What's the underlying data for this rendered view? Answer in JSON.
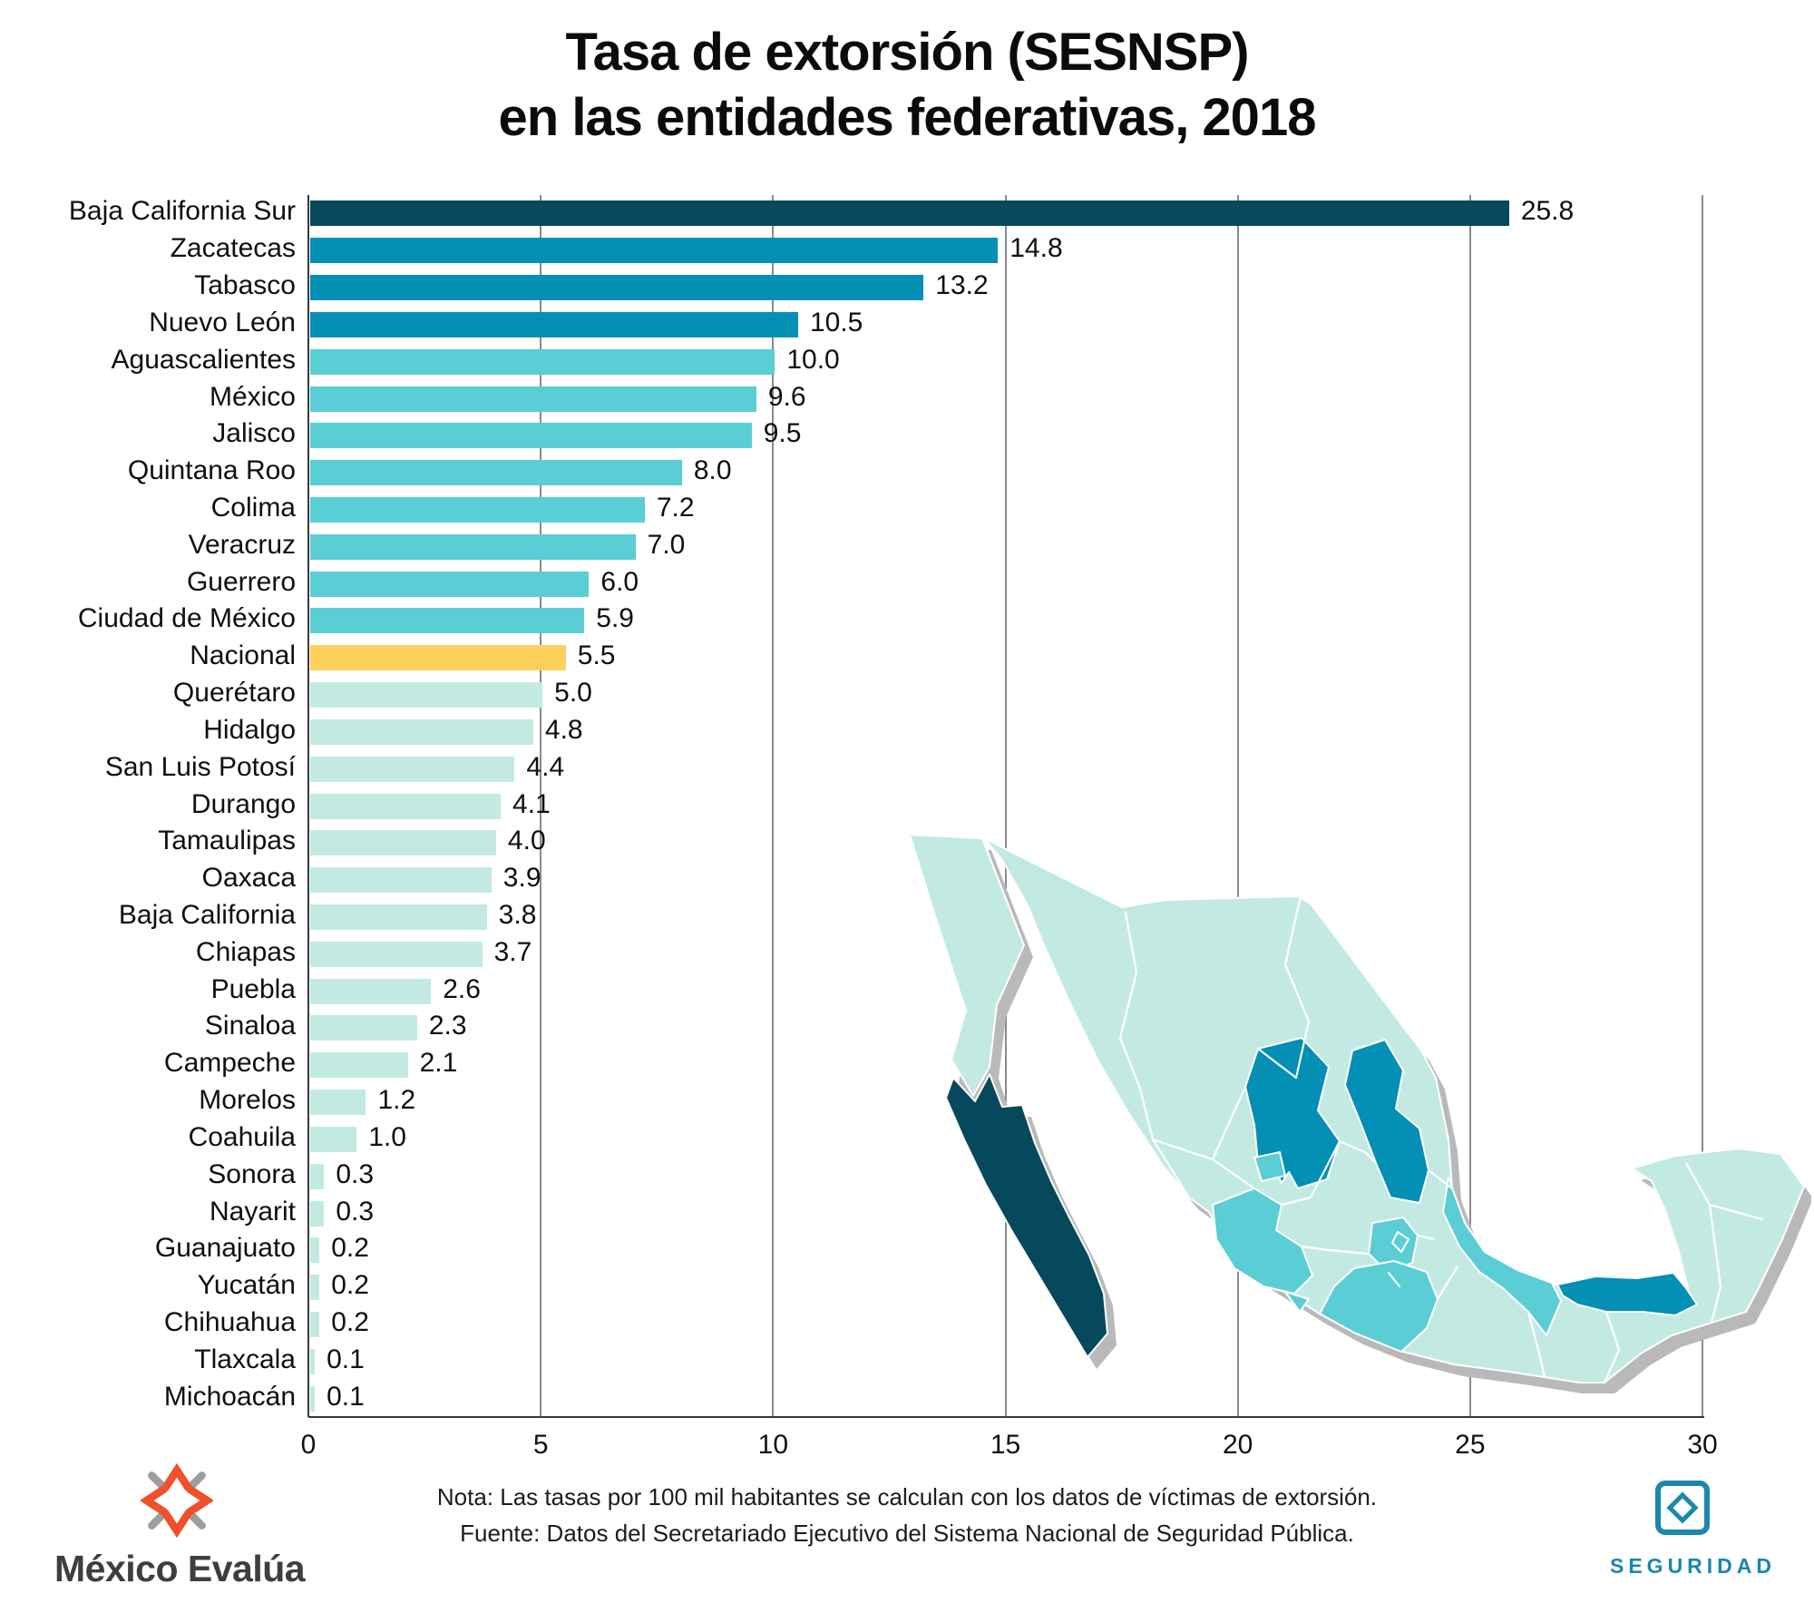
{
  "title": {
    "line1": "Tasa de extorsión (SESNSP)",
    "line2": "en las entidades federativas, 2018"
  },
  "chart_data": {
    "type": "bar",
    "orientation": "horizontal",
    "title": "Tasa de extorsión (SESNSP) en las entidades federativas, 2018",
    "xlabel": "",
    "ylabel": "",
    "xlim": [
      0,
      30
    ],
    "x_ticks": [
      0,
      5,
      10,
      15,
      20,
      25,
      30
    ],
    "grid": "vertical",
    "categories": [
      "Baja California Sur",
      "Zacatecas",
      "Tabasco",
      "Nuevo León",
      "Aguascalientes",
      "México",
      "Jalisco",
      "Quintana Roo",
      "Colima",
      "Veracruz",
      "Guerrero",
      "Ciudad de México",
      "Nacional",
      "Querétaro",
      "Hidalgo",
      "San Luis Potosí",
      "Durango",
      "Tamaulipas",
      "Oaxaca",
      "Baja California",
      "Chiapas",
      "Puebla",
      "Sinaloa",
      "Campeche",
      "Morelos",
      "Coahuila",
      "Sonora",
      "Nayarit",
      "Guanajuato",
      "Yucatán",
      "Chihuahua",
      "Tlaxcala",
      "Michoacán"
    ],
    "values": [
      25.8,
      14.8,
      13.2,
      10.5,
      10.0,
      9.6,
      9.5,
      8.0,
      7.2,
      7.0,
      6.0,
      5.9,
      5.5,
      5.0,
      4.8,
      4.4,
      4.1,
      4.0,
      3.9,
      3.8,
      3.7,
      2.6,
      2.3,
      2.1,
      1.2,
      1.0,
      0.3,
      0.3,
      0.2,
      0.2,
      0.2,
      0.1,
      0.1
    ],
    "value_labels": [
      "25.8",
      "14.8",
      "13.2",
      "10.5",
      "10.0",
      "9.6",
      "9.5",
      "8.0",
      "7.2",
      "7.0",
      "6.0",
      "5.9",
      "5.5",
      "5.0",
      "4.8",
      "4.4",
      "4.1",
      "4.0",
      "3.9",
      "3.8",
      "3.7",
      "2.6",
      "2.3",
      "2.1",
      "1.2",
      "1.0",
      "0.3",
      "0.3",
      "0.2",
      "0.2",
      "0.2",
      "0.1",
      "0.1"
    ],
    "groups": [
      "navy",
      "blue",
      "blue",
      "blue",
      "cyan",
      "cyan",
      "cyan",
      "cyan",
      "cyan",
      "cyan",
      "cyan",
      "cyan",
      "yellow",
      "mint",
      "mint",
      "mint",
      "mint",
      "mint",
      "mint",
      "mint",
      "mint",
      "mint",
      "mint",
      "mint",
      "mint",
      "mint",
      "mint",
      "mint",
      "mint",
      "mint",
      "mint",
      "mint",
      "mint"
    ]
  },
  "palette": {
    "navy": "#07495c",
    "blue": "#048fb4",
    "cyan": "#5acdd5",
    "yellow": "#fdd05b",
    "mint": "#c2eae3",
    "map_shadow": "#b9b9b9",
    "grid": "#8a8a8a",
    "axis": "#3a3a3a",
    "accent_teal": "#1b87ad",
    "logo_orange": "#f0502a",
    "logo_gray": "#9b9fa3"
  },
  "map": {
    "highlight_navy": [
      "Baja California Sur"
    ],
    "highlight_blue": [
      "Zacatecas",
      "Nuevo León",
      "Tabasco"
    ],
    "highlight_cyan": [
      "Aguascalientes",
      "Jalisco",
      "México",
      "Ciudad de México",
      "Colima",
      "Guerrero",
      "Veracruz"
    ]
  },
  "notes": {
    "line1": "Nota: Las tasas por 100 mil habitantes se calculan con los datos de víctimas de extorsión.",
    "line2": "Fuente: Datos del Secretariado Ejecutivo del Sistema Nacional de Seguridad Pública."
  },
  "logos": {
    "mexico_evalua": "México Evalúa",
    "seguridad": "SEGURIDAD"
  }
}
